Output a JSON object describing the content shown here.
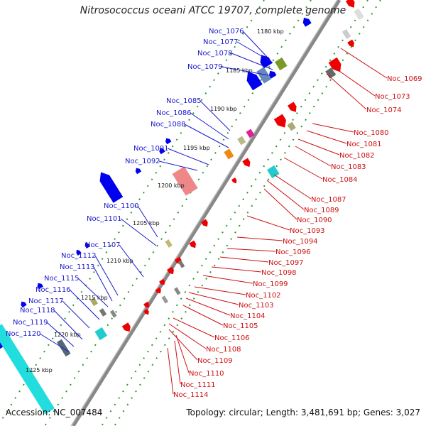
{
  "title": "Nitrosococcus oceani ATCC 19707, complete genome",
  "accession": "Accession: NC_007484",
  "topology": "Topology: circular; Length: 3,481,691 bp; Genes: 3,027",
  "colors": {
    "forward_label": "#1a1acc",
    "reverse_label": "#cc1111",
    "forward_feature": "#0000ee",
    "reverse_feature": "#ee0000",
    "backbone": "#888888",
    "track_dots": "#2a9a2a"
  },
  "kbp_ticks": [
    "1180 kbp",
    "1185 kbp",
    "1190 kbp",
    "1195 kbp",
    "1200 kbp",
    "1205 kbp",
    "1210 kbp",
    "1215 kbp",
    "1220 kbp",
    "1225 kbp"
  ],
  "left_labels": [
    "Noc_1076",
    "Noc_1077",
    "Noc_1078",
    "Noc_1079",
    "Noc_1085",
    "Noc_1086",
    "Noc_1088",
    "Noc_1091",
    "Noc_1092",
    "Noc_1100",
    "Noc_1101",
    "Noc_1107",
    "Noc_1112",
    "Noc_1113",
    "Noc_1115",
    "Noc_1116",
    "Noc_1117",
    "Noc_1118",
    "Noc_1119",
    "Noc_1120"
  ],
  "right_labels": [
    "Noc_1069",
    "Noc_1073",
    "Noc_1074",
    "Noc_1080",
    "Noc_1081",
    "Noc_1082",
    "Noc_1083",
    "Noc_1084",
    "Noc_1087",
    "Noc_1089",
    "Noc_1090",
    "Noc_1093",
    "Noc_1094",
    "Noc_1096",
    "Noc_1097",
    "Noc_1098",
    "Noc_1099",
    "Noc_1102",
    "Noc_1103",
    "Noc_1104",
    "Noc_1105",
    "Noc_1106",
    "Noc_1108",
    "Noc_1109",
    "Noc_1110",
    "Noc_1111",
    "Noc_1114"
  ]
}
